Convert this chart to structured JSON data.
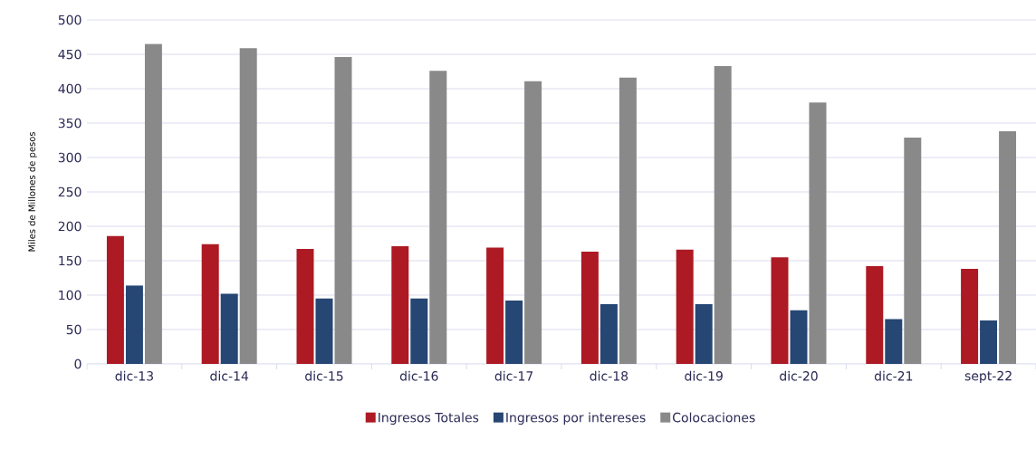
{
  "chart_data": {
    "type": "bar",
    "ylabel": "Miles de Millones de pesos",
    "categories": [
      "dic-13",
      "dic-14",
      "dic-15",
      "dic-16",
      "dic-17",
      "dic-18",
      "dic-19",
      "dic-20",
      "dic-21",
      "sept-22"
    ],
    "series": [
      {
        "name": "Ingresos Totales",
        "color": "#ad1a24",
        "values": [
          186,
          174,
          167,
          171,
          169,
          163,
          166,
          155,
          142,
          138
        ]
      },
      {
        "name": "Ingresos por intereses",
        "color": "#264673",
        "values": [
          114,
          102,
          95,
          95,
          92,
          87,
          87,
          78,
          65,
          63
        ]
      },
      {
        "name": "Colocaciones",
        "color": "#898989",
        "values": [
          465,
          459,
          446,
          426,
          411,
          416,
          433,
          380,
          329,
          338
        ]
      }
    ],
    "ylim": [
      0,
      500
    ],
    "yticks": [
      0,
      50,
      100,
      150,
      200,
      250,
      300,
      350,
      400,
      450,
      500
    ],
    "grid": "y",
    "legend": "bottom"
  }
}
